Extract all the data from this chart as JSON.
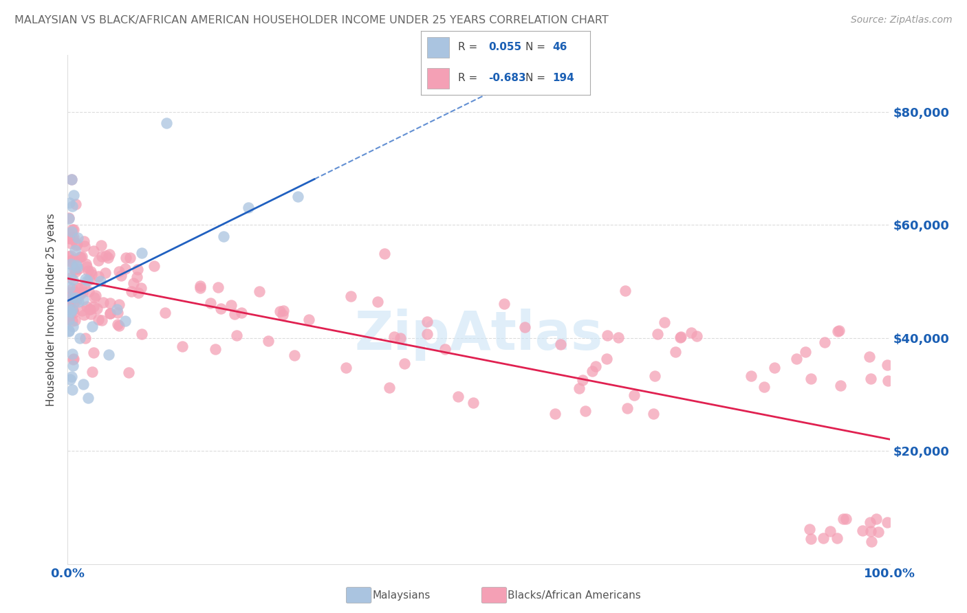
{
  "title": "MALAYSIAN VS BLACK/AFRICAN AMERICAN HOUSEHOLDER INCOME UNDER 25 YEARS CORRELATION CHART",
  "source": "Source: ZipAtlas.com",
  "ylabel": "Householder Income Under 25 years",
  "R_malaysian": 0.055,
  "N_malaysian": 46,
  "R_black": -0.683,
  "N_black": 194,
  "xlim": [
    0,
    1
  ],
  "ylim": [
    0,
    90000
  ],
  "yticks": [
    20000,
    40000,
    60000,
    80000
  ],
  "ytick_labels": [
    "$20,000",
    "$40,000",
    "$60,000",
    "$80,000"
  ],
  "xtick_labels": [
    "0.0%",
    "100.0%"
  ],
  "color_malaysian": "#aac4e0",
  "color_black": "#f4a0b5",
  "line_color_malaysian": "#2060c0",
  "line_color_black": "#e02050",
  "background_color": "#ffffff",
  "grid_color": "#cccccc",
  "title_color": "#666666",
  "label_color": "#1a5fb4",
  "watermark_color": "#cce4f5",
  "legend_label_color": "#1a5fb4"
}
